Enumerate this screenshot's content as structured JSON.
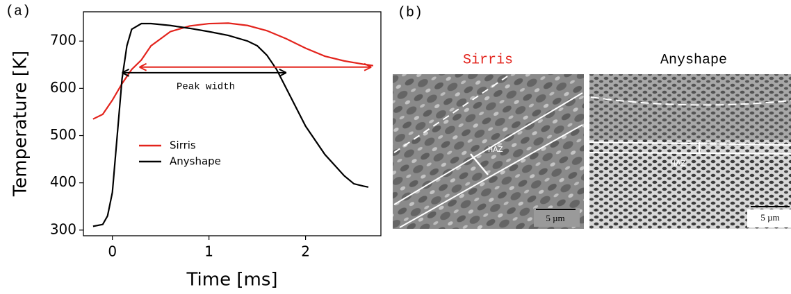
{
  "chart_data": {
    "type": "line",
    "panel_label": "(a)",
    "xlabel": "Time [ms]",
    "ylabel": "Temperature [K]",
    "xlim": [
      -0.3,
      2.78
    ],
    "ylim": [
      288,
      762
    ],
    "xticks": [
      0,
      1,
      2
    ],
    "yticks": [
      300,
      400,
      500,
      600,
      700
    ],
    "legend": "center left",
    "series": [
      {
        "name": "Sirris",
        "color": "#e3231c",
        "x": [
          -0.2,
          -0.1,
          0,
          0.1,
          0.2,
          0.3,
          0.4,
          0.5,
          0.6,
          0.8,
          1.0,
          1.2,
          1.4,
          1.6,
          1.8,
          2.0,
          2.2,
          2.4,
          2.6,
          2.7
        ],
        "values": [
          535,
          545,
          575,
          610,
          640,
          660,
          690,
          705,
          720,
          732,
          737,
          738,
          733,
          722,
          705,
          685,
          668,
          658,
          651,
          648
        ]
      },
      {
        "name": "Anyshape",
        "color": "#000000",
        "x": [
          -0.2,
          -0.1,
          -0.05,
          0,
          0.05,
          0.1,
          0.15,
          0.2,
          0.3,
          0.4,
          0.6,
          0.8,
          1.0,
          1.2,
          1.4,
          1.5,
          1.6,
          1.7,
          1.8,
          2.0,
          2.2,
          2.4,
          2.5,
          2.6,
          2.65
        ],
        "values": [
          308,
          312,
          330,
          380,
          500,
          620,
          690,
          725,
          737,
          737,
          733,
          727,
          720,
          712,
          700,
          690,
          670,
          640,
          600,
          520,
          460,
          415,
          398,
          393,
          391
        ]
      }
    ],
    "arrows": [
      {
        "color": "#e3231c",
        "x": [
          0.28,
          2.68
        ],
        "y": 645
      },
      {
        "color": "#000000",
        "x": [
          0.1,
          1.8
        ],
        "y": 633
      }
    ],
    "annotation": "Peak width"
  },
  "panel_b": {
    "panel_label": "(b)",
    "images": [
      {
        "title": "Sirris",
        "zone_label": "HAZ",
        "scale_bar": "5 µm"
      },
      {
        "title": "Anyshape",
        "zone_label": "HAZ",
        "scale_bar": "5 µm"
      }
    ]
  }
}
